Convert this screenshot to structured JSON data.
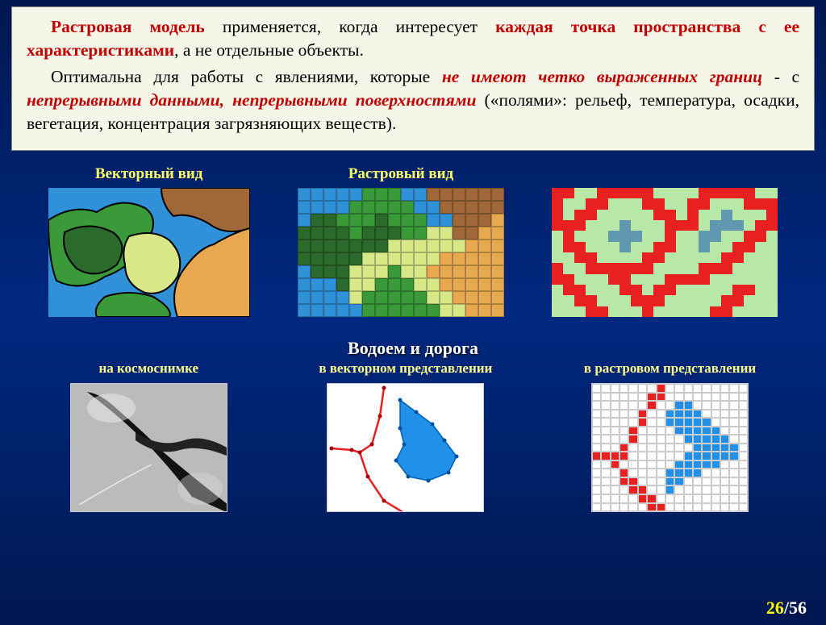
{
  "textBox": {
    "p1_lead": "Растровая модель",
    "p1_mid1": " применяется, когда интересует ",
    "p1_em": "каждая точка пространства с ее характеристиками",
    "p1_tail": ", а не отдельные объекты.",
    "p2_lead": "Оптимальна для работы с явлениями, которые ",
    "p2_em1": "не имеют четко выраженных границ",
    "p2_mid": " - с ",
    "p2_em2": "непрерывными данными, непрерывными поверхностями",
    "p2_tail": " («полями»: рельеф, температура, осадки, вегетация, концентрация загрязняющих веществ)."
  },
  "labels": {
    "vector": "Векторный вид",
    "raster": "Растровый вид",
    "row2_title": "Водоем и дорога",
    "sat": "на космоснимке",
    "vec2": "в векторном представлении",
    "ras2": "в растровом представлении"
  },
  "pagination": {
    "current": "26",
    "total": "/56"
  },
  "colors": {
    "background_top": "#001850",
    "background_mid": "#002880",
    "text_box_bg": "#f5f5e8",
    "label_color": "#ffff66",
    "emphasis_red": "#c00000",
    "water": "#2090e8",
    "road": "#e82020",
    "veg_light": "#b8e8a8"
  },
  "raster1_grid": {
    "cols": 16,
    "rows": 10,
    "cells": [
      "bl",
      "bl",
      "bl",
      "bl",
      "bl",
      "gr",
      "gr",
      "gr",
      "bl",
      "bl",
      "br",
      "br",
      "br",
      "br",
      "br",
      "br",
      "bl",
      "bl",
      "bl",
      "bl",
      "gr",
      "gr",
      "gr",
      "gr",
      "gr",
      "bl",
      "bl",
      "br",
      "br",
      "br",
      "br",
      "br",
      "bl",
      "dg",
      "dg",
      "gr",
      "gr",
      "gr",
      "dg",
      "gr",
      "gr",
      "gr",
      "bl",
      "bl",
      "br",
      "br",
      "br",
      "or",
      "dg",
      "dg",
      "dg",
      "dg",
      "gr",
      "dg",
      "dg",
      "dg",
      "gr",
      "gr",
      "yl",
      "yl",
      "br",
      "br",
      "or",
      "or",
      "dg",
      "dg",
      "dg",
      "dg",
      "dg",
      "dg",
      "dg",
      "yl",
      "yl",
      "yl",
      "yl",
      "yl",
      "yl",
      "or",
      "or",
      "or",
      "dg",
      "dg",
      "dg",
      "dg",
      "dg",
      "yl",
      "yl",
      "yl",
      "yl",
      "yl",
      "yl",
      "or",
      "or",
      "or",
      "or",
      "or",
      "bl",
      "dg",
      "dg",
      "dg",
      "yl",
      "yl",
      "yl",
      "gr",
      "yl",
      "yl",
      "or",
      "or",
      "or",
      "or",
      "or",
      "or",
      "bl",
      "bl",
      "bl",
      "dg",
      "yl",
      "yl",
      "gr",
      "gr",
      "gr",
      "yl",
      "yl",
      "or",
      "or",
      "or",
      "or",
      "or",
      "bl",
      "bl",
      "bl",
      "bl",
      "yl",
      "gr",
      "gr",
      "gr",
      "gr",
      "gr",
      "yl",
      "yl",
      "or",
      "or",
      "or",
      "or",
      "bl",
      "bl",
      "bl",
      "bl",
      "bl",
      "gr",
      "gr",
      "gr",
      "gr",
      "gr",
      "gr",
      "yl",
      "yl",
      "or",
      "or",
      "or"
    ]
  },
  "raster2_grid": {
    "cols": 20,
    "rows": 12,
    "cells": [
      "rd",
      "rd",
      "lg",
      "lg",
      "rd",
      "rd",
      "rd",
      "rd",
      "rd",
      "lg",
      "lg",
      "lg",
      "lg",
      "rd",
      "rd",
      "rd",
      "rd",
      "rd",
      "lg",
      "lg",
      "rd",
      "lg",
      "lg",
      "rd",
      "rd",
      "lg",
      "lg",
      "lg",
      "rd",
      "rd",
      "lg",
      "lg",
      "rd",
      "rd",
      "lg",
      "lg",
      "lg",
      "rd",
      "rd",
      "rd",
      "rd",
      "lg",
      "rd",
      "rd",
      "lg",
      "lg",
      "lg",
      "lg",
      "lg",
      "rd",
      "rd",
      "lg",
      "rd",
      "lg",
      "lg",
      "gb",
      "lg",
      "lg",
      "lg",
      "rd",
      "rd",
      "rd",
      "rd",
      "lg",
      "lg",
      "lg",
      "gb",
      "lg",
      "lg",
      "lg",
      "rd",
      "rd",
      "rd",
      "lg",
      "gb",
      "gb",
      "gb",
      "lg",
      "rd",
      "rd",
      "lg",
      "rd",
      "lg",
      "lg",
      "lg",
      "gb",
      "gb",
      "gb",
      "lg",
      "lg",
      "rd",
      "lg",
      "lg",
      "gb",
      "gb",
      "lg",
      "lg",
      "rd",
      "rd",
      "lg",
      "lg",
      "rd",
      "rd",
      "lg",
      "lg",
      "lg",
      "gb",
      "lg",
      "lg",
      "rd",
      "rd",
      "lg",
      "lg",
      "gb",
      "lg",
      "lg",
      "rd",
      "rd",
      "lg",
      "lg",
      "lg",
      "lg",
      "rd",
      "rd",
      "lg",
      "lg",
      "lg",
      "lg",
      "rd",
      "rd",
      "lg",
      "lg",
      "lg",
      "lg",
      "lg",
      "rd",
      "rd",
      "lg",
      "lg",
      "lg",
      "rd",
      "lg",
      "lg",
      "rd",
      "rd",
      "rd",
      "rd",
      "rd",
      "rd",
      "lg",
      "lg",
      "lg",
      "lg",
      "rd",
      "rd",
      "rd",
      "lg",
      "lg",
      "lg",
      "lg",
      "rd",
      "rd",
      "lg",
      "lg",
      "lg",
      "rd",
      "rd",
      "lg",
      "lg",
      "lg",
      "rd",
      "rd",
      "rd",
      "rd",
      "lg",
      "lg",
      "lg",
      "lg",
      "lg",
      "lg",
      "lg",
      "rd",
      "rd",
      "lg",
      "lg",
      "lg",
      "rd",
      "rd",
      "lg",
      "rd",
      "rd",
      "lg",
      "lg",
      "lg",
      "lg",
      "lg",
      "rd",
      "rd",
      "lg",
      "lg",
      "lg",
      "lg",
      "rd",
      "rd",
      "lg",
      "lg",
      "lg",
      "rd",
      "rd",
      "rd",
      "lg",
      "lg",
      "lg",
      "lg",
      "lg",
      "rd",
      "rd",
      "lg",
      "lg",
      "lg",
      "lg",
      "lg",
      "lg",
      "rd",
      "rd",
      "lg",
      "lg",
      "lg",
      "rd",
      "lg",
      "lg",
      "lg",
      "lg",
      "lg",
      "rd",
      "rd",
      "lg",
      "lg",
      "lg",
      "lg"
    ]
  },
  "raster3_grid": {
    "cols": 17,
    "rows": 15,
    "cells": [
      "wh",
      "wh",
      "wh",
      "wh",
      "wh",
      "wh",
      "wh",
      "rd",
      "wh",
      "wh",
      "wh",
      "wh",
      "wh",
      "wh",
      "wh",
      "wh",
      "wh",
      "wh",
      "wh",
      "wh",
      "wh",
      "wh",
      "wh",
      "rd",
      "rd",
      "wh",
      "wh",
      "wh",
      "wh",
      "wh",
      "wh",
      "wh",
      "wh",
      "wh",
      "wh",
      "wh",
      "wh",
      "wh",
      "wh",
      "wh",
      "rd",
      "wh",
      "wh",
      "bu",
      "bu",
      "wh",
      "wh",
      "wh",
      "wh",
      "wh",
      "wh",
      "wh",
      "wh",
      "wh",
      "wh",
      "wh",
      "rd",
      "wh",
      "wh",
      "bu",
      "bu",
      "bu",
      "bu",
      "wh",
      "wh",
      "wh",
      "wh",
      "wh",
      "wh",
      "wh",
      "wh",
      "wh",
      "wh",
      "rd",
      "wh",
      "wh",
      "bu",
      "bu",
      "bu",
      "bu",
      "bu",
      "wh",
      "wh",
      "wh",
      "wh",
      "wh",
      "wh",
      "wh",
      "wh",
      "rd",
      "wh",
      "wh",
      "wh",
      "wh",
      "bu",
      "bu",
      "bu",
      "bu",
      "bu",
      "wh",
      "wh",
      "wh",
      "wh",
      "wh",
      "wh",
      "wh",
      "rd",
      "wh",
      "wh",
      "wh",
      "wh",
      "wh",
      "bu",
      "bu",
      "bu",
      "bu",
      "bu",
      "wh",
      "wh",
      "wh",
      "wh",
      "wh",
      "rd",
      "wh",
      "wh",
      "wh",
      "wh",
      "wh",
      "wh",
      "wh",
      "bu",
      "bu",
      "bu",
      "bu",
      "bu",
      "wh",
      "rd",
      "rd",
      "rd",
      "rd",
      "wh",
      "wh",
      "wh",
      "wh",
      "wh",
      "wh",
      "bu",
      "bu",
      "bu",
      "bu",
      "bu",
      "bu",
      "wh",
      "wh",
      "wh",
      "rd",
      "wh",
      "wh",
      "wh",
      "wh",
      "wh",
      "wh",
      "bu",
      "bu",
      "bu",
      "bu",
      "bu",
      "wh",
      "wh",
      "wh",
      "wh",
      "wh",
      "wh",
      "rd",
      "wh",
      "wh",
      "wh",
      "wh",
      "bu",
      "bu",
      "bu",
      "bu",
      "wh",
      "wh",
      "wh",
      "wh",
      "wh",
      "wh",
      "wh",
      "wh",
      "rd",
      "rd",
      "wh",
      "wh",
      "wh",
      "bu",
      "bu",
      "wh",
      "wh",
      "wh",
      "wh",
      "wh",
      "wh",
      "wh",
      "wh",
      "wh",
      "wh",
      "wh",
      "rd",
      "rd",
      "wh",
      "wh",
      "bu",
      "wh",
      "wh",
      "wh",
      "wh",
      "wh",
      "wh",
      "wh",
      "wh",
      "wh",
      "wh",
      "wh",
      "wh",
      "wh",
      "rd",
      "rd",
      "wh",
      "wh",
      "wh",
      "wh",
      "wh",
      "wh",
      "wh",
      "wh",
      "wh",
      "wh",
      "wh",
      "wh",
      "wh",
      "wh",
      "wh",
      "wh",
      "rd",
      "rd",
      "wh",
      "wh",
      "wh",
      "wh",
      "wh",
      "wh",
      "wh",
      "wh",
      "wh"
    ]
  }
}
